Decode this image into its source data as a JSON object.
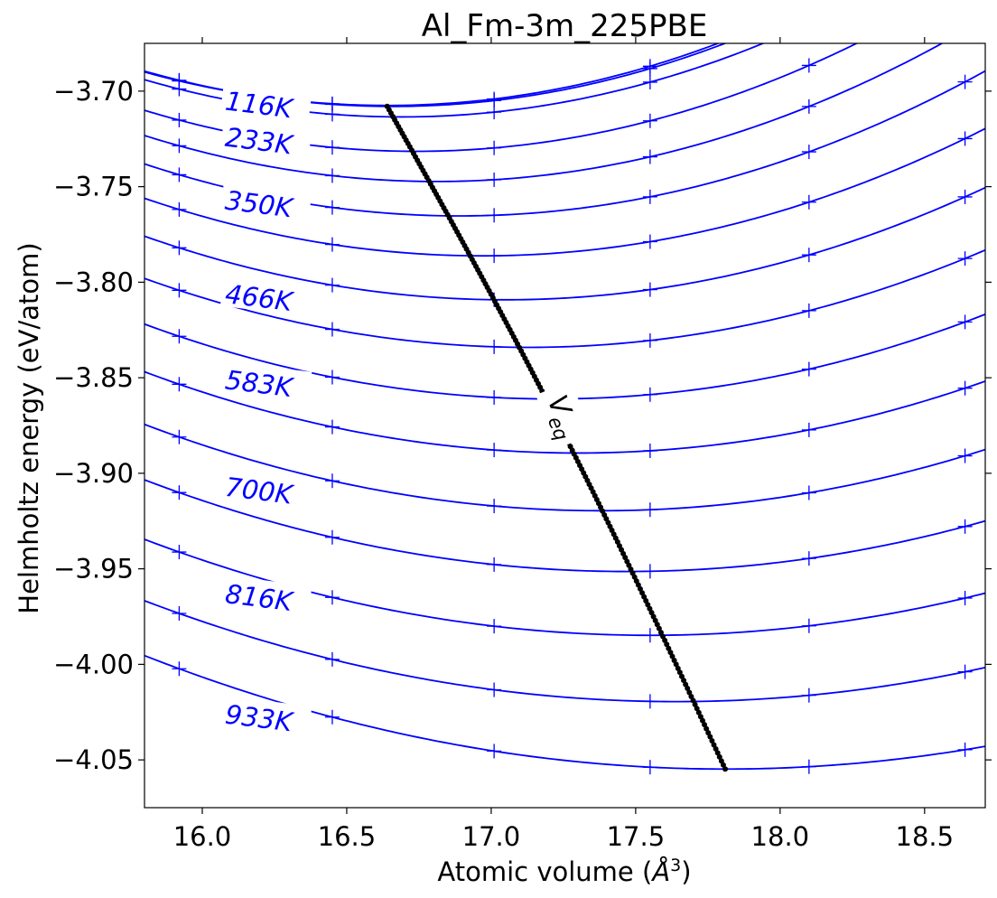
{
  "chart_data": {
    "type": "line",
    "title": "Al_Fm-3m_225PBE",
    "xlabel_prefix": "Atomic volume (",
    "xlabel_unit_base": "Å",
    "xlabel_unit_sup": "3",
    "xlabel_suffix": ")",
    "ylabel": "Helmholtz energy (eV/atom)",
    "xlim": [
      15.8,
      18.71
    ],
    "ylim": [
      -4.075,
      -3.675
    ],
    "xticks": [
      16.0,
      16.5,
      17.0,
      17.5,
      18.0,
      18.5
    ],
    "xtick_labels": [
      "16.0",
      "16.5",
      "17.0",
      "17.5",
      "18.0",
      "18.5"
    ],
    "yticks": [
      -3.7,
      -3.75,
      -3.8,
      -3.85,
      -3.9,
      -3.95,
      -4.0,
      -4.05
    ],
    "ytick_labels": [
      "−3.70",
      "−3.75",
      "−3.80",
      "−3.85",
      "−3.90",
      "−3.95",
      "−4.00",
      "−4.05"
    ],
    "grid": false,
    "curve_color": "#0000ff",
    "marker_color": "#0000ff",
    "veq_color": "#000000",
    "marker_volumes": [
      15.92,
      16.45,
      17.01,
      17.55,
      18.1,
      18.64
    ],
    "curve_labels": [
      {
        "text": "116K",
        "x": 16.08,
        "y": -3.705
      },
      {
        "text": "233K",
        "x": 16.08,
        "y": -3.724
      },
      {
        "text": "350K",
        "x": 16.08,
        "y": -3.757
      },
      {
        "text": "466K",
        "x": 16.08,
        "y": -3.806
      },
      {
        "text": "583K",
        "x": 16.08,
        "y": -3.851
      },
      {
        "text": "700K",
        "x": 16.08,
        "y": -3.907
      },
      {
        "text": "816K",
        "x": 16.08,
        "y": -3.963
      },
      {
        "text": "933K",
        "x": 16.08,
        "y": -4.026
      }
    ],
    "veq_label": {
      "text": "V",
      "sub": "eq",
      "x": 17.24,
      "y": -3.866
    },
    "series": [
      {
        "v0": 16.64,
        "fmin": -3.7075,
        "a": 0.0248
      },
      {
        "v0": 16.66,
        "fmin": -3.708,
        "a": 0.025
      },
      {
        "v0": 16.69,
        "fmin": -3.7135,
        "a": 0.0246
      },
      {
        "v0": 16.74,
        "fmin": -3.7315,
        "a": 0.0243
      },
      {
        "v0": 16.81,
        "fmin": -3.7473,
        "a": 0.0236
      },
      {
        "v0": 16.89,
        "fmin": -3.7653,
        "a": 0.0229
      },
      {
        "v0": 16.97,
        "fmin": -3.7862,
        "a": 0.022
      },
      {
        "v0": 17.05,
        "fmin": -3.8092,
        "a": 0.0213
      },
      {
        "v0": 17.13,
        "fmin": -3.8341,
        "a": 0.0204
      },
      {
        "v0": 17.21,
        "fmin": -3.8611,
        "a": 0.0197
      },
      {
        "v0": 17.3,
        "fmin": -3.8894,
        "a": 0.0189
      },
      {
        "v0": 17.38,
        "fmin": -3.9196,
        "a": 0.0181
      },
      {
        "v0": 17.47,
        "fmin": -3.9514,
        "a": 0.0172
      },
      {
        "v0": 17.55,
        "fmin": -3.9848,
        "a": 0.0164
      },
      {
        "v0": 17.64,
        "fmin": -4.0195,
        "a": 0.0156
      },
      {
        "v0": 17.81,
        "fmin": -4.0548,
        "a": 0.0147
      }
    ],
    "veq": {
      "v_start": 16.64,
      "f_start": -3.708,
      "v_end": 17.81,
      "f_end": -4.0548,
      "points": 180,
      "gap_v": [
        17.18,
        17.265
      ]
    }
  }
}
